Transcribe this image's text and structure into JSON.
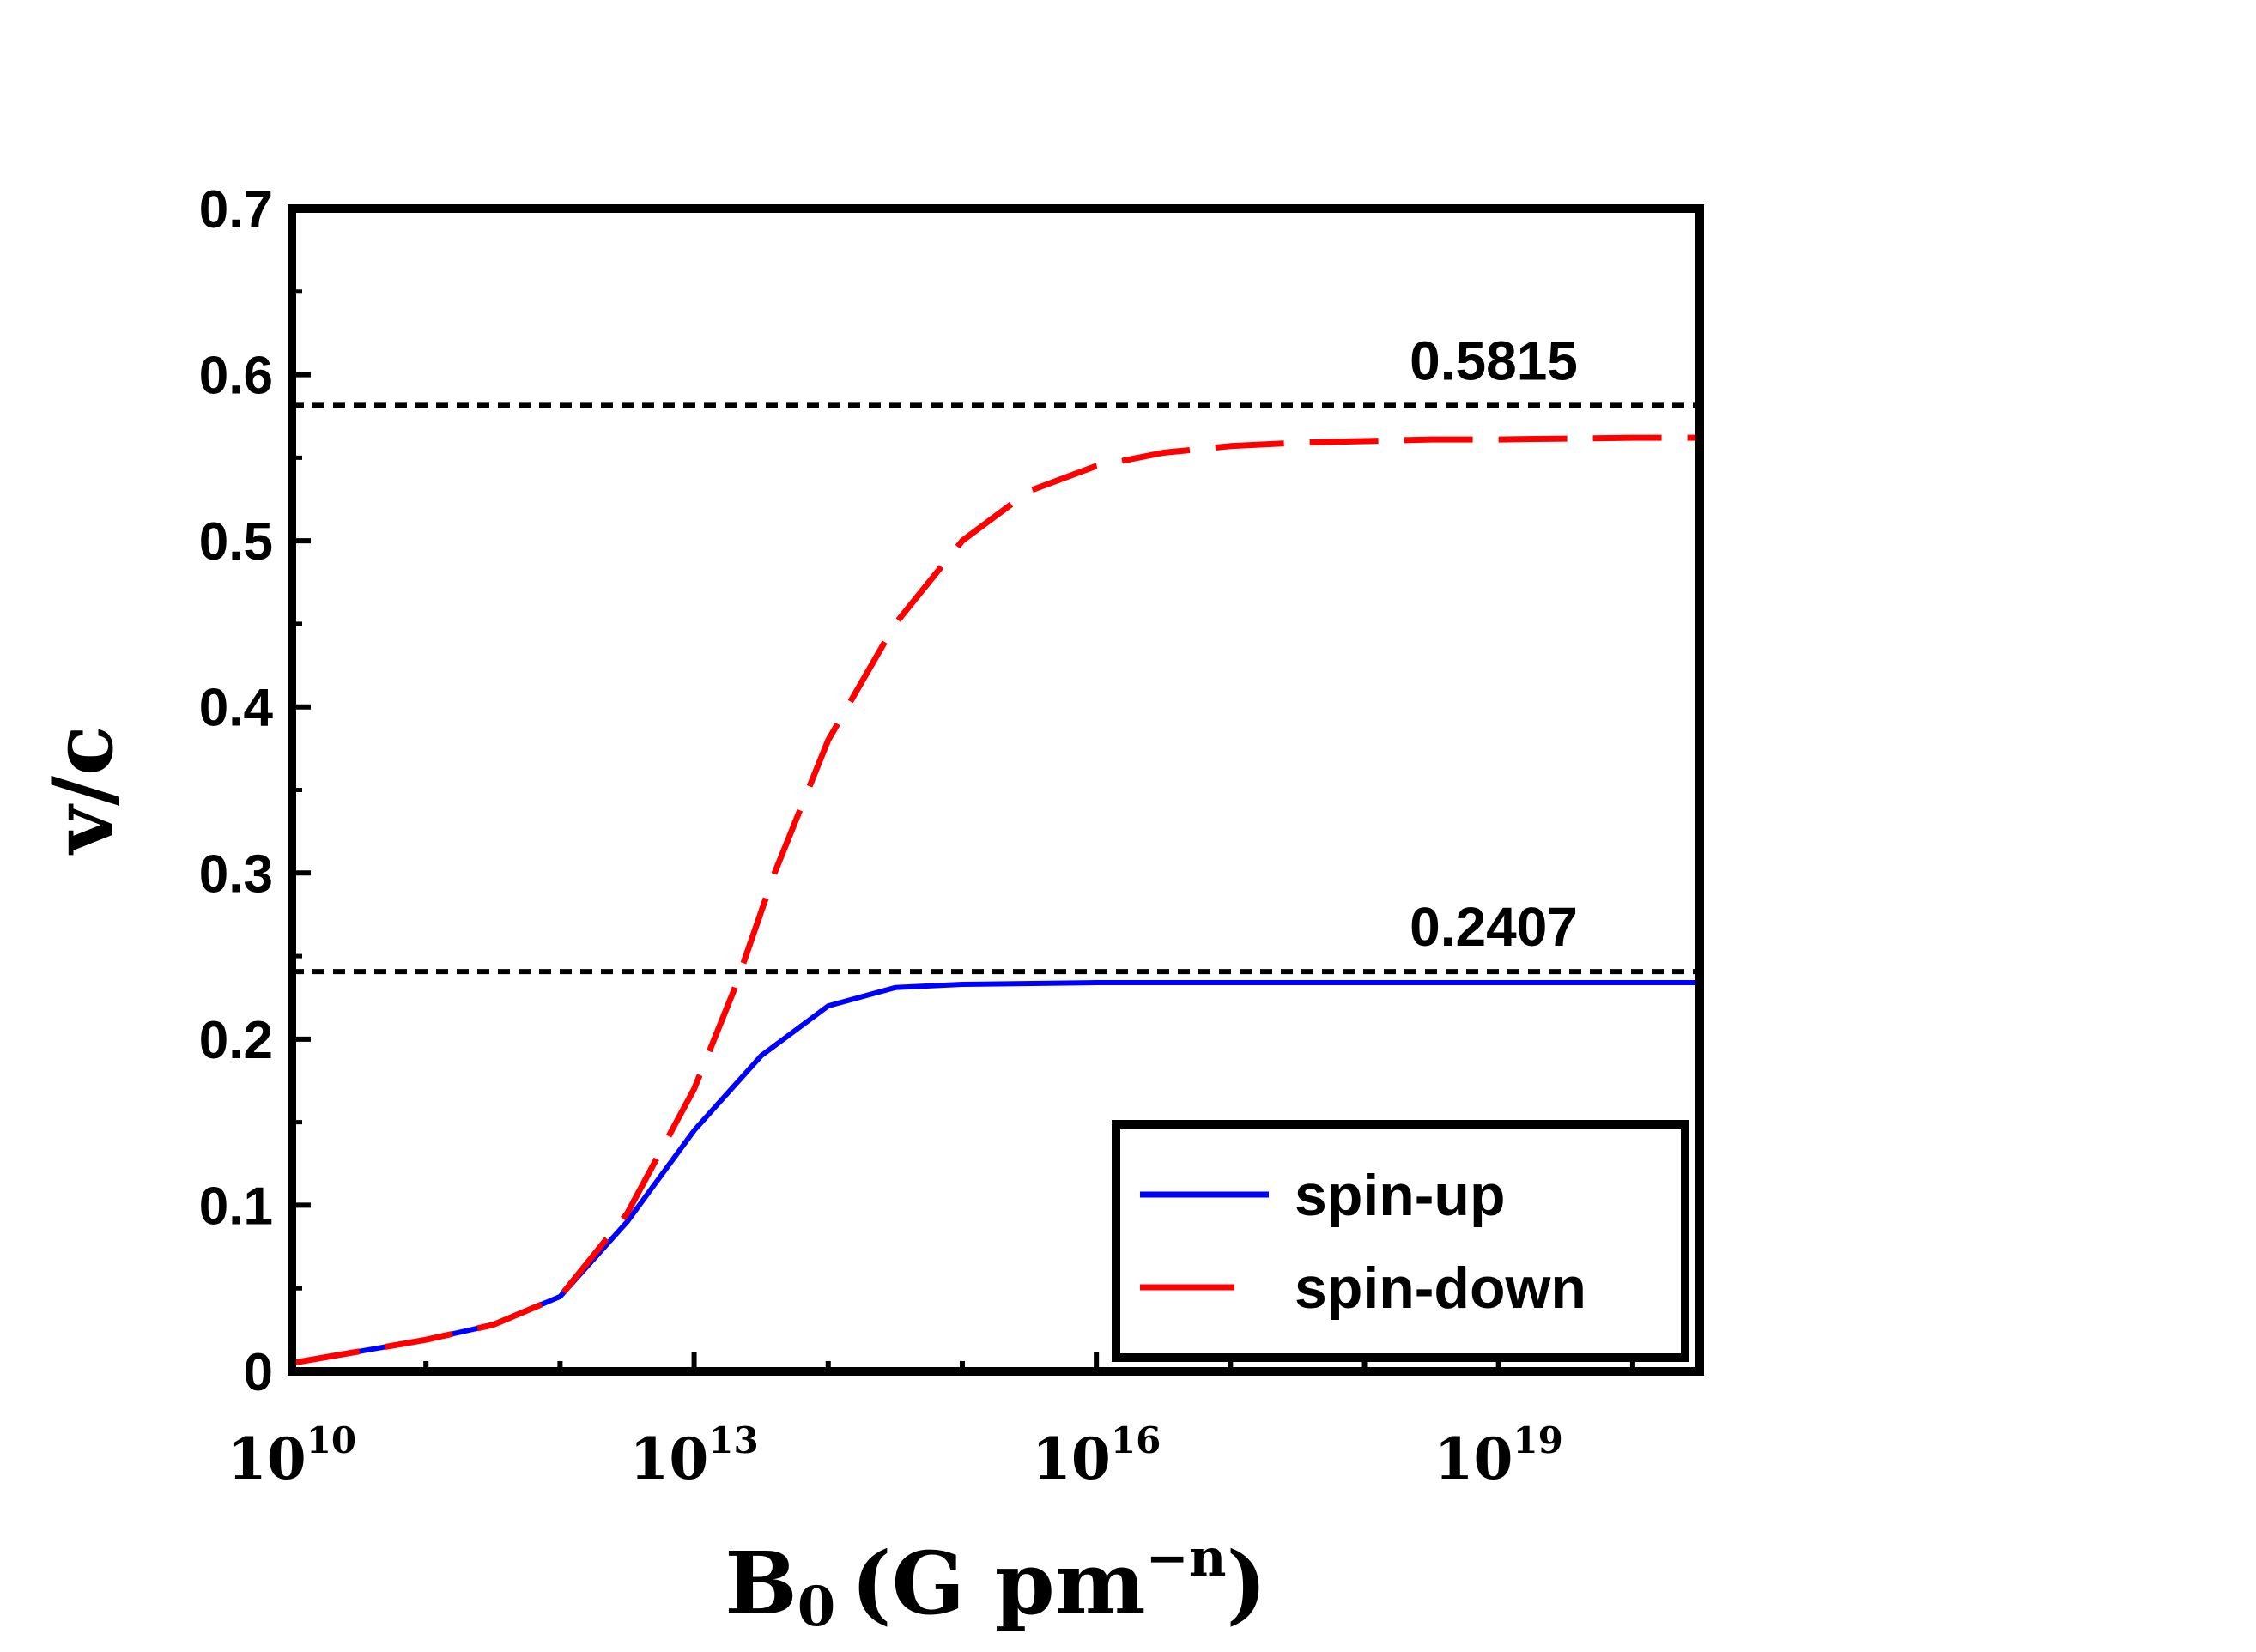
{
  "chart_data": {
    "type": "line",
    "xscale": "log10",
    "xlim": [
      10,
      20.5
    ],
    "ylim": [
      0,
      0.7
    ],
    "xticks": [
      10,
      13,
      16,
      19
    ],
    "xtick_labels": [
      {
        "base": "10",
        "exp": "10"
      },
      {
        "base": "10",
        "exp": "13"
      },
      {
        "base": "10",
        "exp": "16"
      },
      {
        "base": "10",
        "exp": "19"
      }
    ],
    "yticks": [
      0,
      0.1,
      0.2,
      0.3,
      0.4,
      0.5,
      0.6,
      0.7
    ],
    "ytick_labels": [
      "0",
      "0.1",
      "0.2",
      "0.3",
      "0.4",
      "0.5",
      "0.6",
      "0.7"
    ],
    "xlabel": {
      "main": "B",
      "sub": "0",
      "unit": "(G pm",
      "exp": "−n",
      "close": ")"
    },
    "ylabel": "v/c",
    "legend_position": "bottom-right",
    "series": [
      {
        "name": "spin-up",
        "color": "#0000ff",
        "style": "solid",
        "x": [
          10,
          10.5,
          11,
          11.5,
          12,
          12.5,
          13,
          13.5,
          14,
          14.5,
          15,
          16,
          17,
          18,
          19,
          20,
          20.5
        ],
        "y": [
          0.005,
          0.012,
          0.019,
          0.028,
          0.045,
          0.09,
          0.145,
          0.19,
          0.22,
          0.231,
          0.233,
          0.234,
          0.234,
          0.234,
          0.234,
          0.234,
          0.234
        ]
      },
      {
        "name": "spin-down",
        "color": "#ff0000",
        "style": "dashed",
        "x": [
          10,
          10.5,
          11,
          11.5,
          12,
          12.5,
          13,
          13.3,
          13.6,
          14,
          14.5,
          15,
          15.5,
          16,
          16.5,
          17,
          17.5,
          18,
          18.5,
          19,
          20,
          20.5
        ],
        "y": [
          0.005,
          0.012,
          0.019,
          0.028,
          0.045,
          0.095,
          0.17,
          0.23,
          0.3,
          0.38,
          0.45,
          0.5,
          0.53,
          0.545,
          0.553,
          0.557,
          0.559,
          0.56,
          0.561,
          0.561,
          0.562,
          0.562
        ]
      }
    ],
    "reference_lines": [
      {
        "y": 0.5815,
        "label": "0.5815"
      },
      {
        "y": 0.2407,
        "label": "0.2407"
      }
    ]
  }
}
